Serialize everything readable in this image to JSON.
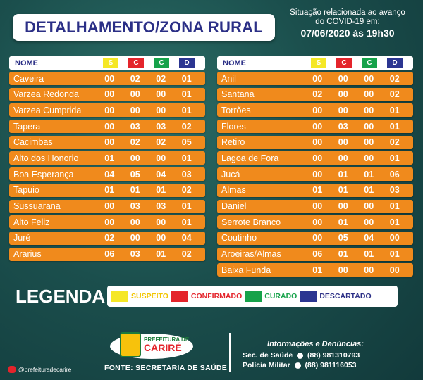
{
  "title": "DETALHAMENTO/ZONA RURAL",
  "status_line1": "Situação relacionada ao avanço",
  "status_line2": "do COVID-19 em:",
  "status_date": "07/06/2020 às 19h30",
  "header": {
    "name": "NOME",
    "s": "S",
    "c": "C",
    "cu": "C",
    "d": "D"
  },
  "left_rows": [
    {
      "name": "Caveira",
      "s": "00",
      "c": "02",
      "cu": "02",
      "d": "01"
    },
    {
      "name": "Varzea Redonda",
      "s": "00",
      "c": "00",
      "cu": "00",
      "d": "01"
    },
    {
      "name": "Varzea Cumprida",
      "s": "00",
      "c": "00",
      "cu": "00",
      "d": "01"
    },
    {
      "name": "Tapera",
      "s": "00",
      "c": "03",
      "cu": "03",
      "d": "02"
    },
    {
      "name": "Cacimbas",
      "s": "00",
      "c": "02",
      "cu": "02",
      "d": "05"
    },
    {
      "name": "Alto dos Honorio",
      "s": "01",
      "c": "00",
      "cu": "00",
      "d": "01"
    },
    {
      "name": "Boa Esperança",
      "s": "04",
      "c": "05",
      "cu": "04",
      "d": "03"
    },
    {
      "name": "Tapuio",
      "s": "01",
      "c": "01",
      "cu": "01",
      "d": "02"
    },
    {
      "name": "Sussuarana",
      "s": "00",
      "c": "03",
      "cu": "03",
      "d": "01"
    },
    {
      "name": "Alto Feliz",
      "s": "00",
      "c": "00",
      "cu": "00",
      "d": "01"
    },
    {
      "name": "Juré",
      "s": "02",
      "c": "00",
      "cu": "00",
      "d": "04"
    },
    {
      "name": "Ararius",
      "s": "06",
      "c": "03",
      "cu": "01",
      "d": "02"
    }
  ],
  "right_rows": [
    {
      "name": "Anil",
      "s": "00",
      "c": "00",
      "cu": "00",
      "d": "02"
    },
    {
      "name": "Santana",
      "s": "02",
      "c": "00",
      "cu": "00",
      "d": "02"
    },
    {
      "name": "Torrões",
      "s": "00",
      "c": "00",
      "cu": "00",
      "d": "01"
    },
    {
      "name": "Flores",
      "s": "00",
      "c": "03",
      "cu": "00",
      "d": "01"
    },
    {
      "name": "Retiro",
      "s": "00",
      "c": "00",
      "cu": "00",
      "d": "02"
    },
    {
      "name": "Lagoa de Fora",
      "s": "00",
      "c": "00",
      "cu": "00",
      "d": "01"
    },
    {
      "name": "Jucá",
      "s": "00",
      "c": "01",
      "cu": "01",
      "d": "06"
    },
    {
      "name": "Almas",
      "s": "01",
      "c": "01",
      "cu": "01",
      "d": "03"
    },
    {
      "name": "Daniel",
      "s": "00",
      "c": "00",
      "cu": "00",
      "d": "01"
    },
    {
      "name": "Serrote Branco",
      "s": "00",
      "c": "01",
      "cu": "00",
      "d": "01"
    },
    {
      "name": "Coutinho",
      "s": "00",
      "c": "05",
      "cu": "04",
      "d": "00"
    },
    {
      "name": "Aroeiras/Almas",
      "s": "06",
      "c": "01",
      "cu": "01",
      "d": "01"
    },
    {
      "name": "Baixa Funda",
      "s": "01",
      "c": "00",
      "cu": "00",
      "d": "00"
    }
  ],
  "legend": {
    "title": "LEGENDA",
    "suspeito": "SUSPEITO",
    "confirmado": "CONFIRMADO",
    "curado": "CURADO",
    "descartado": "DESCARTADO"
  },
  "colors": {
    "suspeito": "#f5e726",
    "confirmado": "#e4242b",
    "curado": "#16a24a",
    "descartado": "#2b3591",
    "row": "#f08a1c"
  },
  "footer": {
    "logo_pref": "PREFEITURA DE",
    "logo_city": "CARIRÉ",
    "fonte": "FONTE: SECRETARIA DE SAÚDE",
    "contacts_head": "Informações e Denúncias:",
    "sec_label": "Sec. de Saúde",
    "sec_phone": "(88) 981310793",
    "pm_label": "Polícia Militar",
    "pm_phone": "(88) 981116053",
    "instagram": "@prefeituradecarire"
  }
}
